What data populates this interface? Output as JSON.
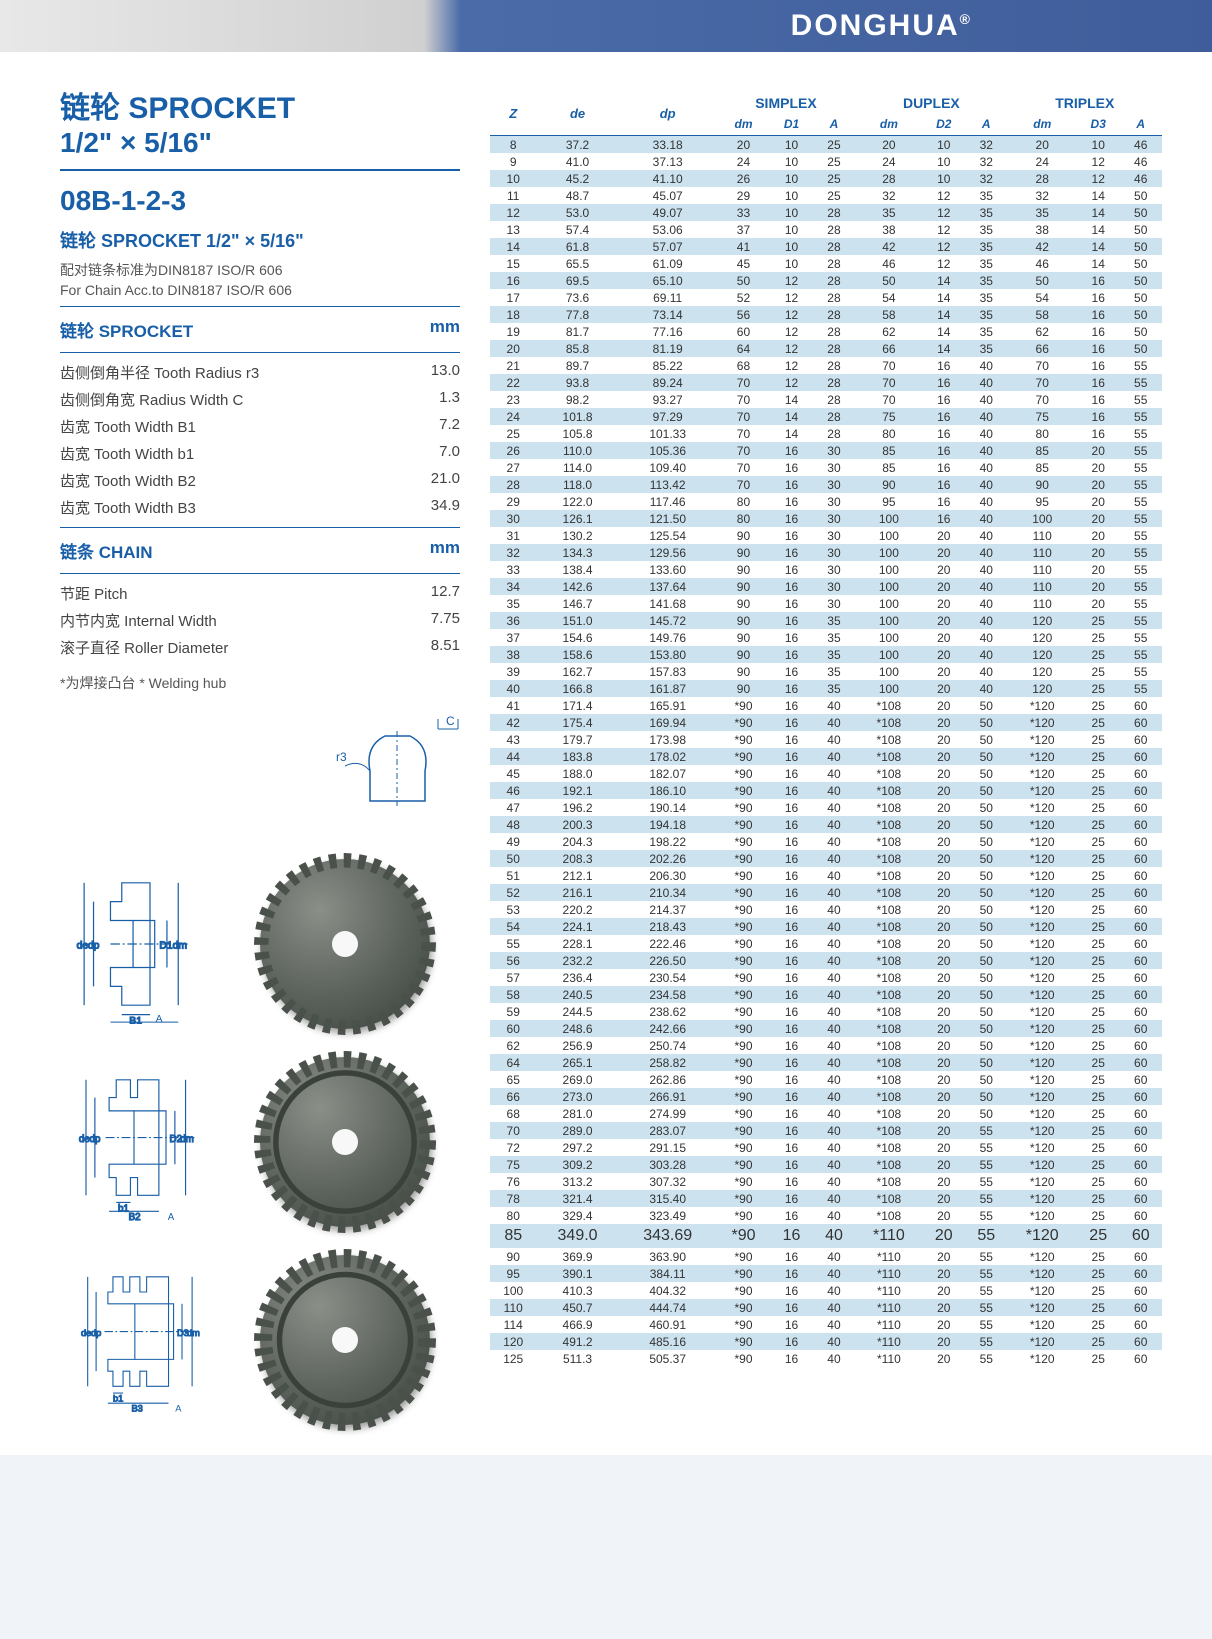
{
  "brand": "DONGHUA",
  "brand_mark": "®",
  "title_cn": "链轮",
  "title_en": "SPROCKET",
  "size_line": "1/2\" × 5/16\"",
  "model": "08B-1-2-3",
  "subtitle2": "链轮 SPROCKET  1/2\" × 5/16\"",
  "std_note_cn": "配对链条标准为DIN8187 ISO/R 606",
  "std_note_en": "For Chain Acc.to DIN8187 ISO/R 606",
  "spec_sprocket_label": "链轮 SPROCKET",
  "spec_chain_label": "链条 CHAIN",
  "unit": "mm",
  "sprocket_specs": [
    {
      "l": "齿侧倒角半径  Tooth Radius r3",
      "v": "13.0"
    },
    {
      "l": "齿侧倒角宽  Radius Width C",
      "v": "1.3"
    },
    {
      "l": "齿宽  Tooth Width B1",
      "v": "7.2"
    },
    {
      "l": "齿宽  Tooth Width b1",
      "v": "7.0"
    },
    {
      "l": "齿宽  Tooth Width B2",
      "v": "21.0"
    },
    {
      "l": "齿宽  Tooth Width B3",
      "v": "34.9"
    }
  ],
  "chain_specs": [
    {
      "l": "节距  Pitch",
      "v": "12.7"
    },
    {
      "l": "内节内宽  Internal Width",
      "v": "7.75"
    },
    {
      "l": "滚子直径  Roller Diameter",
      "v": "8.51"
    }
  ],
  "welding_note": "*为焊接凸台  * Welding hub",
  "diag_labels": {
    "de": "de",
    "dp": "dp",
    "dm": "dm",
    "D1": "D1",
    "D2": "D2",
    "D3": "D3",
    "B1": "B1",
    "B2": "B2",
    "B3": "B3",
    "b1": "b1",
    "A": "A",
    "C": "C",
    "r3": "r3"
  },
  "table": {
    "headers_top": [
      "Z",
      "de",
      "dp",
      "SIMPLEX",
      "DUPLEX",
      "TRIPLEX"
    ],
    "headers_sub": [
      "dm",
      "D1",
      "A",
      "dm",
      "D2",
      "A",
      "dm",
      "D3",
      "A"
    ],
    "rows": [
      [
        "8",
        "37.2",
        "33.18",
        "20",
        "10",
        "25",
        "20",
        "10",
        "32",
        "20",
        "10",
        "46"
      ],
      [
        "9",
        "41.0",
        "37.13",
        "24",
        "10",
        "25",
        "24",
        "10",
        "32",
        "24",
        "12",
        "46"
      ],
      [
        "10",
        "45.2",
        "41.10",
        "26",
        "10",
        "25",
        "28",
        "10",
        "32",
        "28",
        "12",
        "46"
      ],
      [
        "11",
        "48.7",
        "45.07",
        "29",
        "10",
        "25",
        "32",
        "12",
        "35",
        "32",
        "14",
        "50"
      ],
      [
        "12",
        "53.0",
        "49.07",
        "33",
        "10",
        "28",
        "35",
        "12",
        "35",
        "35",
        "14",
        "50"
      ],
      [
        "13",
        "57.4",
        "53.06",
        "37",
        "10",
        "28",
        "38",
        "12",
        "35",
        "38",
        "14",
        "50"
      ],
      [
        "14",
        "61.8",
        "57.07",
        "41",
        "10",
        "28",
        "42",
        "12",
        "35",
        "42",
        "14",
        "50"
      ],
      [
        "15",
        "65.5",
        "61.09",
        "45",
        "10",
        "28",
        "46",
        "12",
        "35",
        "46",
        "14",
        "50"
      ],
      [
        "16",
        "69.5",
        "65.10",
        "50",
        "12",
        "28",
        "50",
        "14",
        "35",
        "50",
        "16",
        "50"
      ],
      [
        "17",
        "73.6",
        "69.11",
        "52",
        "12",
        "28",
        "54",
        "14",
        "35",
        "54",
        "16",
        "50"
      ],
      [
        "18",
        "77.8",
        "73.14",
        "56",
        "12",
        "28",
        "58",
        "14",
        "35",
        "58",
        "16",
        "50"
      ],
      [
        "19",
        "81.7",
        "77.16",
        "60",
        "12",
        "28",
        "62",
        "14",
        "35",
        "62",
        "16",
        "50"
      ],
      [
        "20",
        "85.8",
        "81.19",
        "64",
        "12",
        "28",
        "66",
        "14",
        "35",
        "66",
        "16",
        "50"
      ],
      [
        "21",
        "89.7",
        "85.22",
        "68",
        "12",
        "28",
        "70",
        "16",
        "40",
        "70",
        "16",
        "55"
      ],
      [
        "22",
        "93.8",
        "89.24",
        "70",
        "12",
        "28",
        "70",
        "16",
        "40",
        "70",
        "16",
        "55"
      ],
      [
        "23",
        "98.2",
        "93.27",
        "70",
        "14",
        "28",
        "70",
        "16",
        "40",
        "70",
        "16",
        "55"
      ],
      [
        "24",
        "101.8",
        "97.29",
        "70",
        "14",
        "28",
        "75",
        "16",
        "40",
        "75",
        "16",
        "55"
      ],
      [
        "25",
        "105.8",
        "101.33",
        "70",
        "14",
        "28",
        "80",
        "16",
        "40",
        "80",
        "16",
        "55"
      ],
      [
        "26",
        "110.0",
        "105.36",
        "70",
        "16",
        "30",
        "85",
        "16",
        "40",
        "85",
        "20",
        "55"
      ],
      [
        "27",
        "114.0",
        "109.40",
        "70",
        "16",
        "30",
        "85",
        "16",
        "40",
        "85",
        "20",
        "55"
      ],
      [
        "28",
        "118.0",
        "113.42",
        "70",
        "16",
        "30",
        "90",
        "16",
        "40",
        "90",
        "20",
        "55"
      ],
      [
        "29",
        "122.0",
        "117.46",
        "80",
        "16",
        "30",
        "95",
        "16",
        "40",
        "95",
        "20",
        "55"
      ],
      [
        "30",
        "126.1",
        "121.50",
        "80",
        "16",
        "30",
        "100",
        "16",
        "40",
        "100",
        "20",
        "55"
      ],
      [
        "31",
        "130.2",
        "125.54",
        "90",
        "16",
        "30",
        "100",
        "20",
        "40",
        "110",
        "20",
        "55"
      ],
      [
        "32",
        "134.3",
        "129.56",
        "90",
        "16",
        "30",
        "100",
        "20",
        "40",
        "110",
        "20",
        "55"
      ],
      [
        "33",
        "138.4",
        "133.60",
        "90",
        "16",
        "30",
        "100",
        "20",
        "40",
        "110",
        "20",
        "55"
      ],
      [
        "34",
        "142.6",
        "137.64",
        "90",
        "16",
        "30",
        "100",
        "20",
        "40",
        "110",
        "20",
        "55"
      ],
      [
        "35",
        "146.7",
        "141.68",
        "90",
        "16",
        "30",
        "100",
        "20",
        "40",
        "110",
        "20",
        "55"
      ],
      [
        "36",
        "151.0",
        "145.72",
        "90",
        "16",
        "35",
        "100",
        "20",
        "40",
        "120",
        "25",
        "55"
      ],
      [
        "37",
        "154.6",
        "149.76",
        "90",
        "16",
        "35",
        "100",
        "20",
        "40",
        "120",
        "25",
        "55"
      ],
      [
        "38",
        "158.6",
        "153.80",
        "90",
        "16",
        "35",
        "100",
        "20",
        "40",
        "120",
        "25",
        "55"
      ],
      [
        "39",
        "162.7",
        "157.83",
        "90",
        "16",
        "35",
        "100",
        "20",
        "40",
        "120",
        "25",
        "55"
      ],
      [
        "40",
        "166.8",
        "161.87",
        "90",
        "16",
        "35",
        "100",
        "20",
        "40",
        "120",
        "25",
        "55"
      ],
      [
        "41",
        "171.4",
        "165.91",
        "*90",
        "16",
        "40",
        "*108",
        "20",
        "50",
        "*120",
        "25",
        "60"
      ],
      [
        "42",
        "175.4",
        "169.94",
        "*90",
        "16",
        "40",
        "*108",
        "20",
        "50",
        "*120",
        "25",
        "60"
      ],
      [
        "43",
        "179.7",
        "173.98",
        "*90",
        "16",
        "40",
        "*108",
        "20",
        "50",
        "*120",
        "25",
        "60"
      ],
      [
        "44",
        "183.8",
        "178.02",
        "*90",
        "16",
        "40",
        "*108",
        "20",
        "50",
        "*120",
        "25",
        "60"
      ],
      [
        "45",
        "188.0",
        "182.07",
        "*90",
        "16",
        "40",
        "*108",
        "20",
        "50",
        "*120",
        "25",
        "60"
      ],
      [
        "46",
        "192.1",
        "186.10",
        "*90",
        "16",
        "40",
        "*108",
        "20",
        "50",
        "*120",
        "25",
        "60"
      ],
      [
        "47",
        "196.2",
        "190.14",
        "*90",
        "16",
        "40",
        "*108",
        "20",
        "50",
        "*120",
        "25",
        "60"
      ],
      [
        "48",
        "200.3",
        "194.18",
        "*90",
        "16",
        "40",
        "*108",
        "20",
        "50",
        "*120",
        "25",
        "60"
      ],
      [
        "49",
        "204.3",
        "198.22",
        "*90",
        "16",
        "40",
        "*108",
        "20",
        "50",
        "*120",
        "25",
        "60"
      ],
      [
        "50",
        "208.3",
        "202.26",
        "*90",
        "16",
        "40",
        "*108",
        "20",
        "50",
        "*120",
        "25",
        "60"
      ],
      [
        "51",
        "212.1",
        "206.30",
        "*90",
        "16",
        "40",
        "*108",
        "20",
        "50",
        "*120",
        "25",
        "60"
      ],
      [
        "52",
        "216.1",
        "210.34",
        "*90",
        "16",
        "40",
        "*108",
        "20",
        "50",
        "*120",
        "25",
        "60"
      ],
      [
        "53",
        "220.2",
        "214.37",
        "*90",
        "16",
        "40",
        "*108",
        "20",
        "50",
        "*120",
        "25",
        "60"
      ],
      [
        "54",
        "224.1",
        "218.43",
        "*90",
        "16",
        "40",
        "*108",
        "20",
        "50",
        "*120",
        "25",
        "60"
      ],
      [
        "55",
        "228.1",
        "222.46",
        "*90",
        "16",
        "40",
        "*108",
        "20",
        "50",
        "*120",
        "25",
        "60"
      ],
      [
        "56",
        "232.2",
        "226.50",
        "*90",
        "16",
        "40",
        "*108",
        "20",
        "50",
        "*120",
        "25",
        "60"
      ],
      [
        "57",
        "236.4",
        "230.54",
        "*90",
        "16",
        "40",
        "*108",
        "20",
        "50",
        "*120",
        "25",
        "60"
      ],
      [
        "58",
        "240.5",
        "234.58",
        "*90",
        "16",
        "40",
        "*108",
        "20",
        "50",
        "*120",
        "25",
        "60"
      ],
      [
        "59",
        "244.5",
        "238.62",
        "*90",
        "16",
        "40",
        "*108",
        "20",
        "50",
        "*120",
        "25",
        "60"
      ],
      [
        "60",
        "248.6",
        "242.66",
        "*90",
        "16",
        "40",
        "*108",
        "20",
        "50",
        "*120",
        "25",
        "60"
      ],
      [
        "62",
        "256.9",
        "250.74",
        "*90",
        "16",
        "40",
        "*108",
        "20",
        "50",
        "*120",
        "25",
        "60"
      ],
      [
        "64",
        "265.1",
        "258.82",
        "*90",
        "16",
        "40",
        "*108",
        "20",
        "50",
        "*120",
        "25",
        "60"
      ],
      [
        "65",
        "269.0",
        "262.86",
        "*90",
        "16",
        "40",
        "*108",
        "20",
        "50",
        "*120",
        "25",
        "60"
      ],
      [
        "66",
        "273.0",
        "266.91",
        "*90",
        "16",
        "40",
        "*108",
        "20",
        "50",
        "*120",
        "25",
        "60"
      ],
      [
        "68",
        "281.0",
        "274.99",
        "*90",
        "16",
        "40",
        "*108",
        "20",
        "50",
        "*120",
        "25",
        "60"
      ],
      [
        "70",
        "289.0",
        "283.07",
        "*90",
        "16",
        "40",
        "*108",
        "20",
        "55",
        "*120",
        "25",
        "60"
      ],
      [
        "72",
        "297.2",
        "291.15",
        "*90",
        "16",
        "40",
        "*108",
        "20",
        "55",
        "*120",
        "25",
        "60"
      ],
      [
        "75",
        "309.2",
        "303.28",
        "*90",
        "16",
        "40",
        "*108",
        "20",
        "55",
        "*120",
        "25",
        "60"
      ],
      [
        "76",
        "313.2",
        "307.32",
        "*90",
        "16",
        "40",
        "*108",
        "20",
        "55",
        "*120",
        "25",
        "60"
      ],
      [
        "78",
        "321.4",
        "315.40",
        "*90",
        "16",
        "40",
        "*108",
        "20",
        "55",
        "*120",
        "25",
        "60"
      ],
      [
        "80",
        "329.4",
        "323.49",
        "*90",
        "16",
        "40",
        "*108",
        "20",
        "55",
        "*120",
        "25",
        "60"
      ],
      [
        "85",
        "349.0",
        "343.69",
        "*90",
        "16",
        "40",
        "*110",
        "20",
        "55",
        "*120",
        "25",
        "60"
      ],
      [
        "90",
        "369.9",
        "363.90",
        "*90",
        "16",
        "40",
        "*110",
        "20",
        "55",
        "*120",
        "25",
        "60"
      ],
      [
        "95",
        "390.1",
        "384.11",
        "*90",
        "16",
        "40",
        "*110",
        "20",
        "55",
        "*120",
        "25",
        "60"
      ],
      [
        "100",
        "410.3",
        "404.32",
        "*90",
        "16",
        "40",
        "*110",
        "20",
        "55",
        "*120",
        "25",
        "60"
      ],
      [
        "110",
        "450.7",
        "444.74",
        "*90",
        "16",
        "40",
        "*110",
        "20",
        "55",
        "*120",
        "25",
        "60"
      ],
      [
        "114",
        "466.9",
        "460.91",
        "*90",
        "16",
        "40",
        "*110",
        "20",
        "55",
        "*120",
        "25",
        "60"
      ],
      [
        "120",
        "491.2",
        "485.16",
        "*90",
        "16",
        "40",
        "*110",
        "20",
        "55",
        "*120",
        "25",
        "60"
      ],
      [
        "125",
        "511.3",
        "505.37",
        "*90",
        "16",
        "40",
        "*110",
        "20",
        "55",
        "*120",
        "25",
        "60"
      ]
    ],
    "big_row_index": 64,
    "colors": {
      "header": "#185fa8",
      "alt_bg": "#cce3ef",
      "rule": "#185fa8"
    }
  }
}
